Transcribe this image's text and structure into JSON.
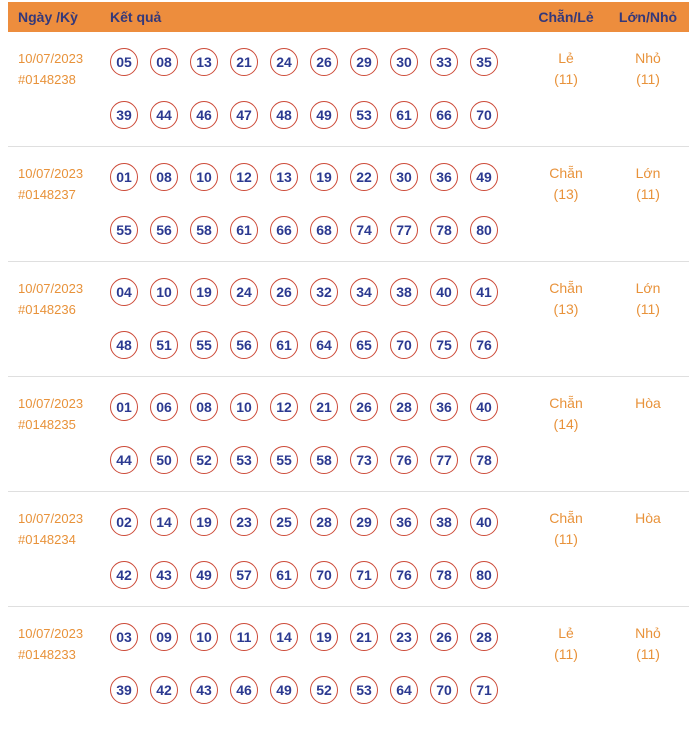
{
  "header": {
    "col_date": "Ngày /Kỳ",
    "col_result": "Kết quả",
    "col_evenodd": "Chẵn/Lẻ",
    "col_bigsmall": "Lớn/Nhỏ"
  },
  "colors": {
    "header_bg": "#ED8D3D",
    "orange_text": "#E8923A",
    "ball_border": "#CC4A38",
    "number_text": "#2B3990",
    "divider": "#DFDFDF",
    "header_text": "#33387A"
  },
  "rows": [
    {
      "date": "10/07/2023",
      "id": "#0148238",
      "numbers_line1": [
        "05",
        "08",
        "13",
        "21",
        "24",
        "26",
        "29",
        "30",
        "33",
        "35"
      ],
      "numbers_line2": [
        "39",
        "44",
        "46",
        "47",
        "48",
        "49",
        "53",
        "61",
        "66",
        "70"
      ],
      "evenodd": "Lẻ",
      "evenodd_count": "(11)",
      "bigsmall": "Nhỏ",
      "bigsmall_count": "(11)"
    },
    {
      "date": "10/07/2023",
      "id": "#0148237",
      "numbers_line1": [
        "01",
        "08",
        "10",
        "12",
        "13",
        "19",
        "22",
        "30",
        "36",
        "49"
      ],
      "numbers_line2": [
        "55",
        "56",
        "58",
        "61",
        "66",
        "68",
        "74",
        "77",
        "78",
        "80"
      ],
      "evenodd": "Chẵn",
      "evenodd_count": "(13)",
      "bigsmall": "Lớn",
      "bigsmall_count": "(11)"
    },
    {
      "date": "10/07/2023",
      "id": "#0148236",
      "numbers_line1": [
        "04",
        "10",
        "19",
        "24",
        "26",
        "32",
        "34",
        "38",
        "40",
        "41"
      ],
      "numbers_line2": [
        "48",
        "51",
        "55",
        "56",
        "61",
        "64",
        "65",
        "70",
        "75",
        "76"
      ],
      "evenodd": "Chẵn",
      "evenodd_count": "(13)",
      "bigsmall": "Lớn",
      "bigsmall_count": "(11)"
    },
    {
      "date": "10/07/2023",
      "id": "#0148235",
      "numbers_line1": [
        "01",
        "06",
        "08",
        "10",
        "12",
        "21",
        "26",
        "28",
        "36",
        "40"
      ],
      "numbers_line2": [
        "44",
        "50",
        "52",
        "53",
        "55",
        "58",
        "73",
        "76",
        "77",
        "78"
      ],
      "evenodd": "Chẵn",
      "evenodd_count": "(14)",
      "bigsmall": "Hòa",
      "bigsmall_count": ""
    },
    {
      "date": "10/07/2023",
      "id": "#0148234",
      "numbers_line1": [
        "02",
        "14",
        "19",
        "23",
        "25",
        "28",
        "29",
        "36",
        "38",
        "40"
      ],
      "numbers_line2": [
        "42",
        "43",
        "49",
        "57",
        "61",
        "70",
        "71",
        "76",
        "78",
        "80"
      ],
      "evenodd": "Chẵn",
      "evenodd_count": "(11)",
      "bigsmall": "Hòa",
      "bigsmall_count": ""
    },
    {
      "date": "10/07/2023",
      "id": "#0148233",
      "numbers_line1": [
        "03",
        "09",
        "10",
        "11",
        "14",
        "19",
        "21",
        "23",
        "26",
        "28"
      ],
      "numbers_line2": [
        "39",
        "42",
        "43",
        "46",
        "49",
        "52",
        "53",
        "64",
        "70",
        "71"
      ],
      "evenodd": "Lẻ",
      "evenodd_count": "(11)",
      "bigsmall": "Nhỏ",
      "bigsmall_count": "(11)"
    }
  ]
}
